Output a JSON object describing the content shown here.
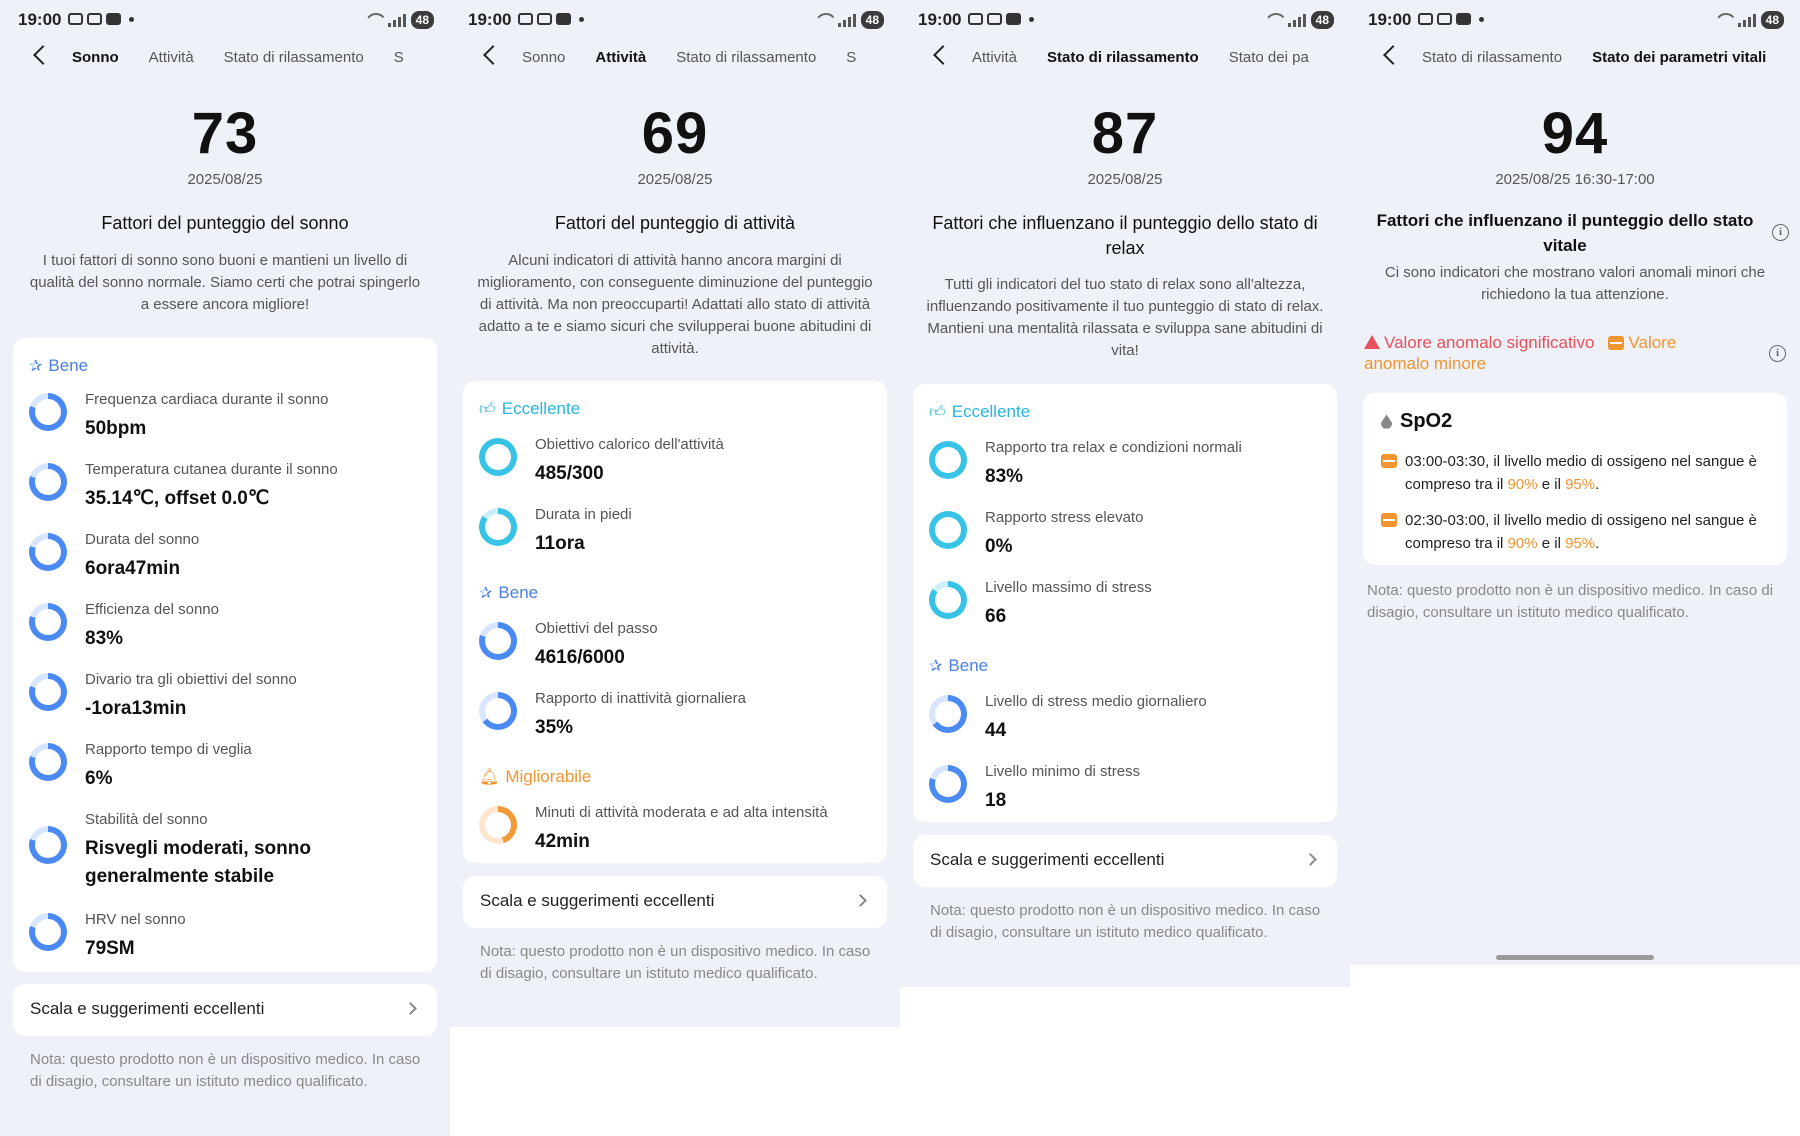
{
  "status": {
    "time": "19:00",
    "battery": "48"
  },
  "panels": [
    {
      "tabs": [
        "Sonno",
        "Attività",
        "Stato di rilassamento",
        "S"
      ],
      "active_tab": 0,
      "score": "73",
      "date": "2025/08/25",
      "title": "Fattori del punteggio del sonno",
      "desc": "I tuoi fattori di sonno sono buoni e mantieni un livello di qualità del sonno normale. Siamo certi che potrai spingerlo a essere ancora migliore!",
      "group_label": "Bene",
      "items": [
        {
          "label": "Frequenza cardiaca durante il sonno",
          "value": "50bpm"
        },
        {
          "label": "Temperatura cutanea durante il sonno",
          "value": "35.14℃, offset 0.0℃"
        },
        {
          "label": "Durata del sonno",
          "value": "6ora47min"
        },
        {
          "label": "Efficienza del sonno",
          "value": "83%"
        },
        {
          "label": "Divario tra gli obiettivi del sonno",
          "value": "-1ora13min"
        },
        {
          "label": "Rapporto tempo di veglia",
          "value": "6%"
        },
        {
          "label": "Stabilità del sonno",
          "value": "Risvegli moderati, sonno generalmente stabile"
        },
        {
          "label": "HRV nel sonno",
          "value": "79SM"
        }
      ],
      "link": "Scala e suggerimenti eccellenti",
      "note": "Nota: questo prodotto non è un dispositivo medico. In caso di disagio, consultare un istituto medico qualificato."
    },
    {
      "tabs": [
        "Sonno",
        "Attività",
        "Stato di rilassamento",
        "S"
      ],
      "active_tab": 1,
      "score": "69",
      "date": "2025/08/25",
      "title": "Fattori del punteggio di attività",
      "desc": "Alcuni indicatori di attività hanno ancora margini di miglioramento, con conseguente diminuzione del punteggio di attività. Ma non preoccuparti! Adattati allo stato di attività adatto a te e siamo sicuri che svilupperai buone abitudini di attività.",
      "groups": [
        {
          "label": "Eccellente",
          "items": [
            {
              "label": "Obiettivo calorico dell'attività",
              "value": "485/300"
            },
            {
              "label": "Durata in piedi",
              "value": "11ora"
            }
          ]
        },
        {
          "label": "Bene",
          "items": [
            {
              "label": "Obiettivi del passo",
              "value": "4616/6000"
            },
            {
              "label": "Rapporto di inattività giornaliera",
              "value": "35%"
            }
          ]
        },
        {
          "label": "Migliorabile",
          "items": [
            {
              "label": "Minuti di attività moderata e ad alta intensità",
              "value": "42min"
            }
          ]
        }
      ],
      "link": "Scala e suggerimenti eccellenti",
      "note": "Nota: questo prodotto non è un dispositivo medico. In caso di disagio, consultare un istituto medico qualificato."
    },
    {
      "tabs": [
        "Attività",
        "Stato di rilassamento",
        "Stato dei pa"
      ],
      "active_tab": 1,
      "score": "87",
      "date": "2025/08/25",
      "title": "Fattori che influenzano il punteggio dello stato di relax",
      "desc": "Tutti gli indicatori del tuo stato di relax sono all'altezza, influenzando positivamente il tuo punteggio di stato di relax. Mantieni una mentalità rilassata e sviluppa sane abitudini di vita!",
      "groups": [
        {
          "label": "Eccellente",
          "items": [
            {
              "label": "Rapporto tra relax e condizioni normali",
              "value": "83%"
            },
            {
              "label": "Rapporto stress elevato",
              "value": "0%"
            },
            {
              "label": "Livello massimo di stress",
              "value": "66"
            }
          ]
        },
        {
          "label": "Bene",
          "items": [
            {
              "label": "Livello di stress medio giornaliero",
              "value": "44"
            },
            {
              "label": "Livello minimo di stress",
              "value": "18"
            }
          ]
        }
      ],
      "link": "Scala e suggerimenti eccellenti",
      "note": "Nota: questo prodotto non è un dispositivo medico. In caso di disagio, consultare un istituto medico qualificato."
    },
    {
      "tabs": [
        "Stato di rilassamento",
        "Stato dei parametri vitali"
      ],
      "active_tab": 1,
      "score": "94",
      "date": "2025/08/25 16:30-17:00",
      "title": "Fattori che influenzano il punteggio dello stato vitale",
      "desc": "Ci sono indicatori che mostrano valori anomali minori che richiedono la tua attenzione.",
      "legend_major": "Valore anomalo significativo",
      "legend_minor_1": "Valore",
      "legend_minor_2": "anomalo minore",
      "card_title": "SpO2",
      "entries": [
        {
          "pre": "03:00-03:30, il livello medio di ossigeno nel sangue è compreso tra il ",
          "a": "90%",
          "mid": " e il ",
          "b": "95%",
          "post": "."
        },
        {
          "pre": "02:30-03:00, il livello medio di ossigeno nel sangue è compreso tra il ",
          "a": "90%",
          "mid": " e il ",
          "b": "95%",
          "post": "."
        }
      ],
      "note": "Nota: questo prodotto non è un dispositivo medico. In caso di disagio, consultare un istituto medico qualificato."
    }
  ]
}
